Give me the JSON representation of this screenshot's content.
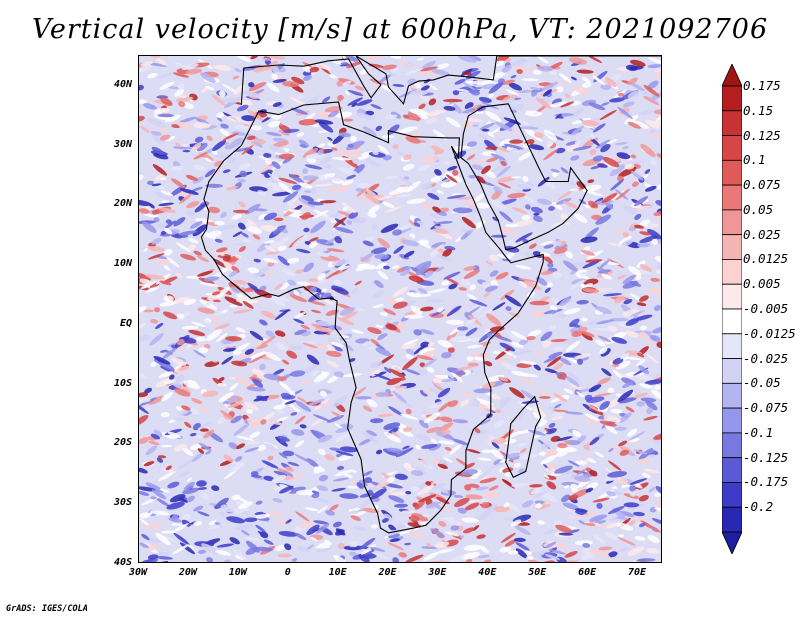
{
  "title": "Vertical velocity [m/s] at 600hPa, VT: 2021092706",
  "credit": "GrADS: IGES/COLA",
  "map": {
    "lon_range": [
      -30,
      75
    ],
    "lat_range": [
      -40,
      45
    ],
    "lat_ticks": [
      {
        "value": 40,
        "label": "40N"
      },
      {
        "value": 30,
        "label": "30N"
      },
      {
        "value": 20,
        "label": "20N"
      },
      {
        "value": 10,
        "label": "10N"
      },
      {
        "value": 0,
        "label": "EQ"
      },
      {
        "value": -10,
        "label": "10S"
      },
      {
        "value": -20,
        "label": "20S"
      },
      {
        "value": -30,
        "label": "30S"
      },
      {
        "value": -40,
        "label": "40S"
      }
    ],
    "lon_ticks": [
      {
        "value": -30,
        "label": "30W"
      },
      {
        "value": -20,
        "label": "20W"
      },
      {
        "value": -10,
        "label": "10W"
      },
      {
        "value": 0,
        "label": "0"
      },
      {
        "value": 10,
        "label": "10E"
      },
      {
        "value": 20,
        "label": "20E"
      },
      {
        "value": 30,
        "label": "30E"
      },
      {
        "value": 40,
        "label": "40E"
      },
      {
        "value": 50,
        "label": "50E"
      },
      {
        "value": 60,
        "label": "60E"
      },
      {
        "value": 70,
        "label": "70E"
      }
    ]
  },
  "colorbar": {
    "levels": [
      {
        "label": "0.175",
        "color": "#b41e1e"
      },
      {
        "label": "0.15",
        "color": "#c83232"
      },
      {
        "label": "0.125",
        "color": "#d74646"
      },
      {
        "label": "0.1",
        "color": "#e15a5a"
      },
      {
        "label": "0.075",
        "color": "#ea7878"
      },
      {
        "label": "0.05",
        "color": "#f09696"
      },
      {
        "label": "0.025",
        "color": "#f5b4b4"
      },
      {
        "label": "0.0125",
        "color": "#fad2d2"
      },
      {
        "label": "0.005",
        "color": "#fde9e9"
      },
      {
        "label": "-0.005",
        "color": "#ffffff"
      },
      {
        "label": "-0.0125",
        "color": "#e6e6fa"
      },
      {
        "label": "-0.025",
        "color": "#d2d2f5"
      },
      {
        "label": "-0.05",
        "color": "#b4b4f0"
      },
      {
        "label": "-0.075",
        "color": "#9696eb"
      },
      {
        "label": "-0.1",
        "color": "#7878e1"
      },
      {
        "label": "-0.125",
        "color": "#5a5ad7"
      },
      {
        "label": "-0.175",
        "color": "#3c3cc8"
      },
      {
        "label": "-0.2",
        "color": "#2828b4"
      }
    ],
    "over_color": "#a01414",
    "under_color": "#1e1ea0"
  },
  "colors": {
    "background": "#ffffff",
    "coast": "#000000",
    "field_base": "#c8c8f0"
  }
}
